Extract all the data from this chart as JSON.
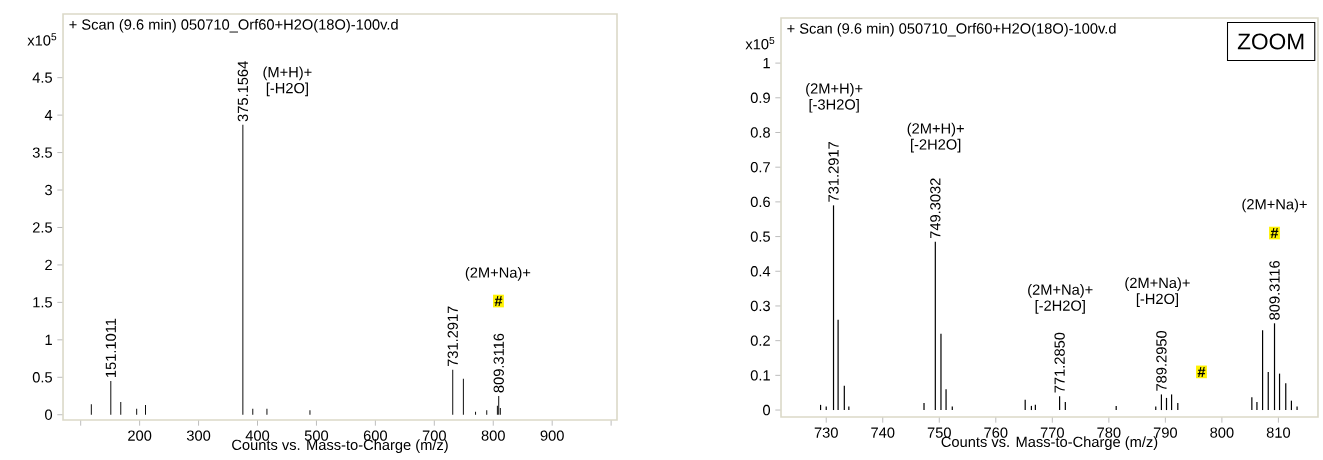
{
  "chart_data": [
    {
      "type": "bar",
      "title": "+ Scan (9.6 min) 050710_Orf60+H2O(18O)-100v.d",
      "xlabel": "Counts vs. Mass-to-Charge (m/z)",
      "ylabel": "x10$^{5}$",
      "color": "#000000",
      "x": [
        118,
        151.1,
        168,
        195,
        210,
        375.16,
        392,
        416,
        489,
        731.29,
        749.3,
        770,
        789,
        807,
        809.31,
        812
      ],
      "values": [
        0.14,
        0.45,
        0.17,
        0.08,
        0.13,
        3.87,
        0.08,
        0.08,
        0.06,
        0.6,
        0.48,
        0.04,
        0.06,
        0.12,
        0.25,
        0.09
      ],
      "xlim": [
        70,
        1010
      ],
      "ylim": [
        -0.07,
        5.35
      ],
      "xticks": [
        {
          "value": 100,
          "label": null
        },
        200,
        300,
        400,
        500,
        600,
        700,
        800,
        900,
        {
          "value": 1000,
          "label": null
        }
      ],
      "yticks": [
        0,
        0.5,
        1,
        1.5,
        2,
        2.5,
        3,
        3.5,
        4,
        4.5
      ],
      "annotations": [
        {
          "text": "151.1011",
          "x": 151.1,
          "y": 0.45
        },
        {
          "text": "375.1564",
          "x": 375.16,
          "y": 3.87
        },
        {
          "text": "731.2917",
          "x": 731.29,
          "y": 0.6
        },
        {
          "text": "809.3116",
          "x": 809.31,
          "y": 0.25
        },
        "(M+H)+ [-H2O]",
        "(2M+Na)+",
        "#"
      ]
    },
    {
      "type": "bar",
      "title": "+ Scan (9.6 min) 050710_Orf60+H2O(18O)-100v.d",
      "xlabel": "Counts vs. Mass-to-Charge (m/z)",
      "ylabel": "x10$^{5}$",
      "color": "#000000",
      "x": [
        729,
        730,
        731.29,
        732.1,
        733.2,
        734,
        747.3,
        749.3,
        750.3,
        751.2,
        752.3,
        765.2,
        766.3,
        767,
        771.29,
        772.3,
        781.3,
        788.3,
        789.3,
        790.2,
        791.1,
        792.2,
        805.3,
        806.2,
        807.2,
        808.2,
        809.31,
        810.2,
        811.3,
        812.3,
        813.3
      ],
      "values": [
        0.015,
        0.01,
        0.59,
        0.26,
        0.07,
        0.01,
        0.02,
        0.485,
        0.22,
        0.06,
        0.01,
        0.03,
        0.012,
        0.015,
        0.04,
        0.023,
        0.012,
        0.01,
        0.045,
        0.035,
        0.045,
        0.02,
        0.037,
        0.023,
        0.23,
        0.11,
        0.25,
        0.105,
        0.077,
        0.027,
        0.01
      ],
      "xlim": [
        722,
        817
      ],
      "ylim": [
        -0.02,
        1.13
      ],
      "xticks": [
        730,
        740,
        750,
        760,
        770,
        780,
        790,
        800,
        810
      ],
      "yticks": [
        0,
        0.1,
        0.2,
        0.3,
        0.4,
        0.5,
        0.6,
        0.7,
        0.8,
        0.9,
        1
      ],
      "annotations": [
        {
          "text": "731.2917",
          "x": 731.29,
          "y": 0.59
        },
        {
          "text": "749.3032",
          "x": 749.3,
          "y": 0.485
        },
        {
          "text": "771.2850",
          "x": 771.29,
          "y": 0.04
        },
        {
          "text": "789.2950",
          "x": 789.3,
          "y": 0.045
        },
        {
          "text": "809.3116",
          "x": 809.31,
          "y": 0.25
        },
        "ZOOM",
        "(2M+H)+ [-3H2O]",
        "(2M+H)+ [-2H2O]",
        "(2M+Na)+ [-2H2O]",
        "(2M+Na)+ [-H2O]",
        "#",
        "(2M+Na)+",
        "#"
      ]
    }
  ]
}
